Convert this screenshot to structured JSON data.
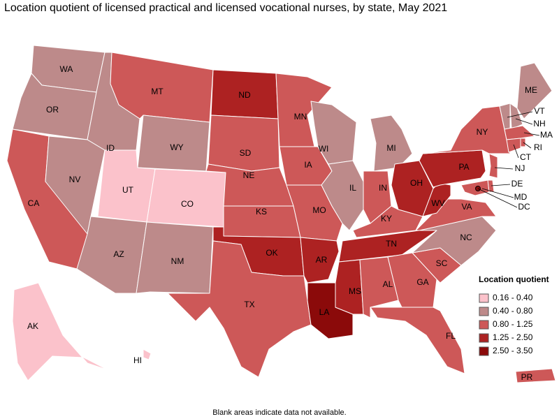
{
  "title": "Location quotient of licensed practical and licensed vocational nurses, by state, May 2021",
  "legend": {
    "title": "Location quotient",
    "items": [
      {
        "label": "0.16 - 0.40",
        "color": "#fbc2cb"
      },
      {
        "label": "0.40 - 0.80",
        "color": "#bd8a8a"
      },
      {
        "label": "0.80 - 1.25",
        "color": "#cd5858"
      },
      {
        "label": "1.25 - 2.50",
        "color": "#ad2222"
      },
      {
        "label": "2.50 - 3.50",
        "color": "#8b0a0a"
      }
    ]
  },
  "states": [
    {
      "abbr": "WA",
      "color": "#bd8a8a"
    },
    {
      "abbr": "OR",
      "color": "#bd8a8a"
    },
    {
      "abbr": "CA",
      "color": "#cd5858"
    },
    {
      "abbr": "NV",
      "color": "#bd8a8a"
    },
    {
      "abbr": "ID",
      "color": "#bd8a8a"
    },
    {
      "abbr": "MT",
      "color": "#cd5858"
    },
    {
      "abbr": "WY",
      "color": "#bd8a8a"
    },
    {
      "abbr": "UT",
      "color": "#fbc2cb"
    },
    {
      "abbr": "CO",
      "color": "#fbc2cb"
    },
    {
      "abbr": "AZ",
      "color": "#bd8a8a"
    },
    {
      "abbr": "NM",
      "color": "#bd8a8a"
    },
    {
      "abbr": "ND",
      "color": "#ad2222"
    },
    {
      "abbr": "SD",
      "color": "#cd5858"
    },
    {
      "abbr": "NE",
      "color": "#cd5858"
    },
    {
      "abbr": "KS",
      "color": "#cd5858"
    },
    {
      "abbr": "OK",
      "color": "#ad2222"
    },
    {
      "abbr": "TX",
      "color": "#cd5858"
    },
    {
      "abbr": "MN",
      "color": "#cd5858"
    },
    {
      "abbr": "IA",
      "color": "#cd5858"
    },
    {
      "abbr": "MO",
      "color": "#cd5858"
    },
    {
      "abbr": "AR",
      "color": "#ad2222"
    },
    {
      "abbr": "LA",
      "color": "#8b0a0a"
    },
    {
      "abbr": "WI",
      "color": "#bd8a8a"
    },
    {
      "abbr": "IL",
      "color": "#bd8a8a"
    },
    {
      "abbr": "MI",
      "color": "#bd8a8a"
    },
    {
      "abbr": "IN",
      "color": "#cd5858"
    },
    {
      "abbr": "OH",
      "color": "#ad2222"
    },
    {
      "abbr": "KY",
      "color": "#cd5858"
    },
    {
      "abbr": "TN",
      "color": "#ad2222"
    },
    {
      "abbr": "MS",
      "color": "#ad2222"
    },
    {
      "abbr": "AL",
      "color": "#cd5858"
    },
    {
      "abbr": "GA",
      "color": "#cd5858"
    },
    {
      "abbr": "FL",
      "color": "#cd5858"
    },
    {
      "abbr": "SC",
      "color": "#cd5858"
    },
    {
      "abbr": "NC",
      "color": "#bd8a8a"
    },
    {
      "abbr": "VA",
      "color": "#cd5858"
    },
    {
      "abbr": "WV",
      "color": "#ad2222"
    },
    {
      "abbr": "PA",
      "color": "#ad2222"
    },
    {
      "abbr": "NY",
      "color": "#cd5858"
    },
    {
      "abbr": "ME",
      "color": "#bd8a8a"
    },
    {
      "abbr": "VT",
      "color": "#bd8a8a"
    },
    {
      "abbr": "NH",
      "color": "#bd8a8a"
    },
    {
      "abbr": "MA",
      "color": "#cd5858"
    },
    {
      "abbr": "RI",
      "color": "#cd5858"
    },
    {
      "abbr": "CT",
      "color": "#cd5858"
    },
    {
      "abbr": "NJ",
      "color": "#cd5858"
    },
    {
      "abbr": "DE",
      "color": "#cd5858"
    },
    {
      "abbr": "MD",
      "color": "#cd5858"
    },
    {
      "abbr": "DC",
      "color": "#8b0a0a"
    },
    {
      "abbr": "AK",
      "color": "#fbc2cb"
    },
    {
      "abbr": "HI",
      "color": "#fbc2cb"
    },
    {
      "abbr": "PR",
      "color": "#cd5858"
    }
  ],
  "footnote": "Blank areas indicate data not available."
}
